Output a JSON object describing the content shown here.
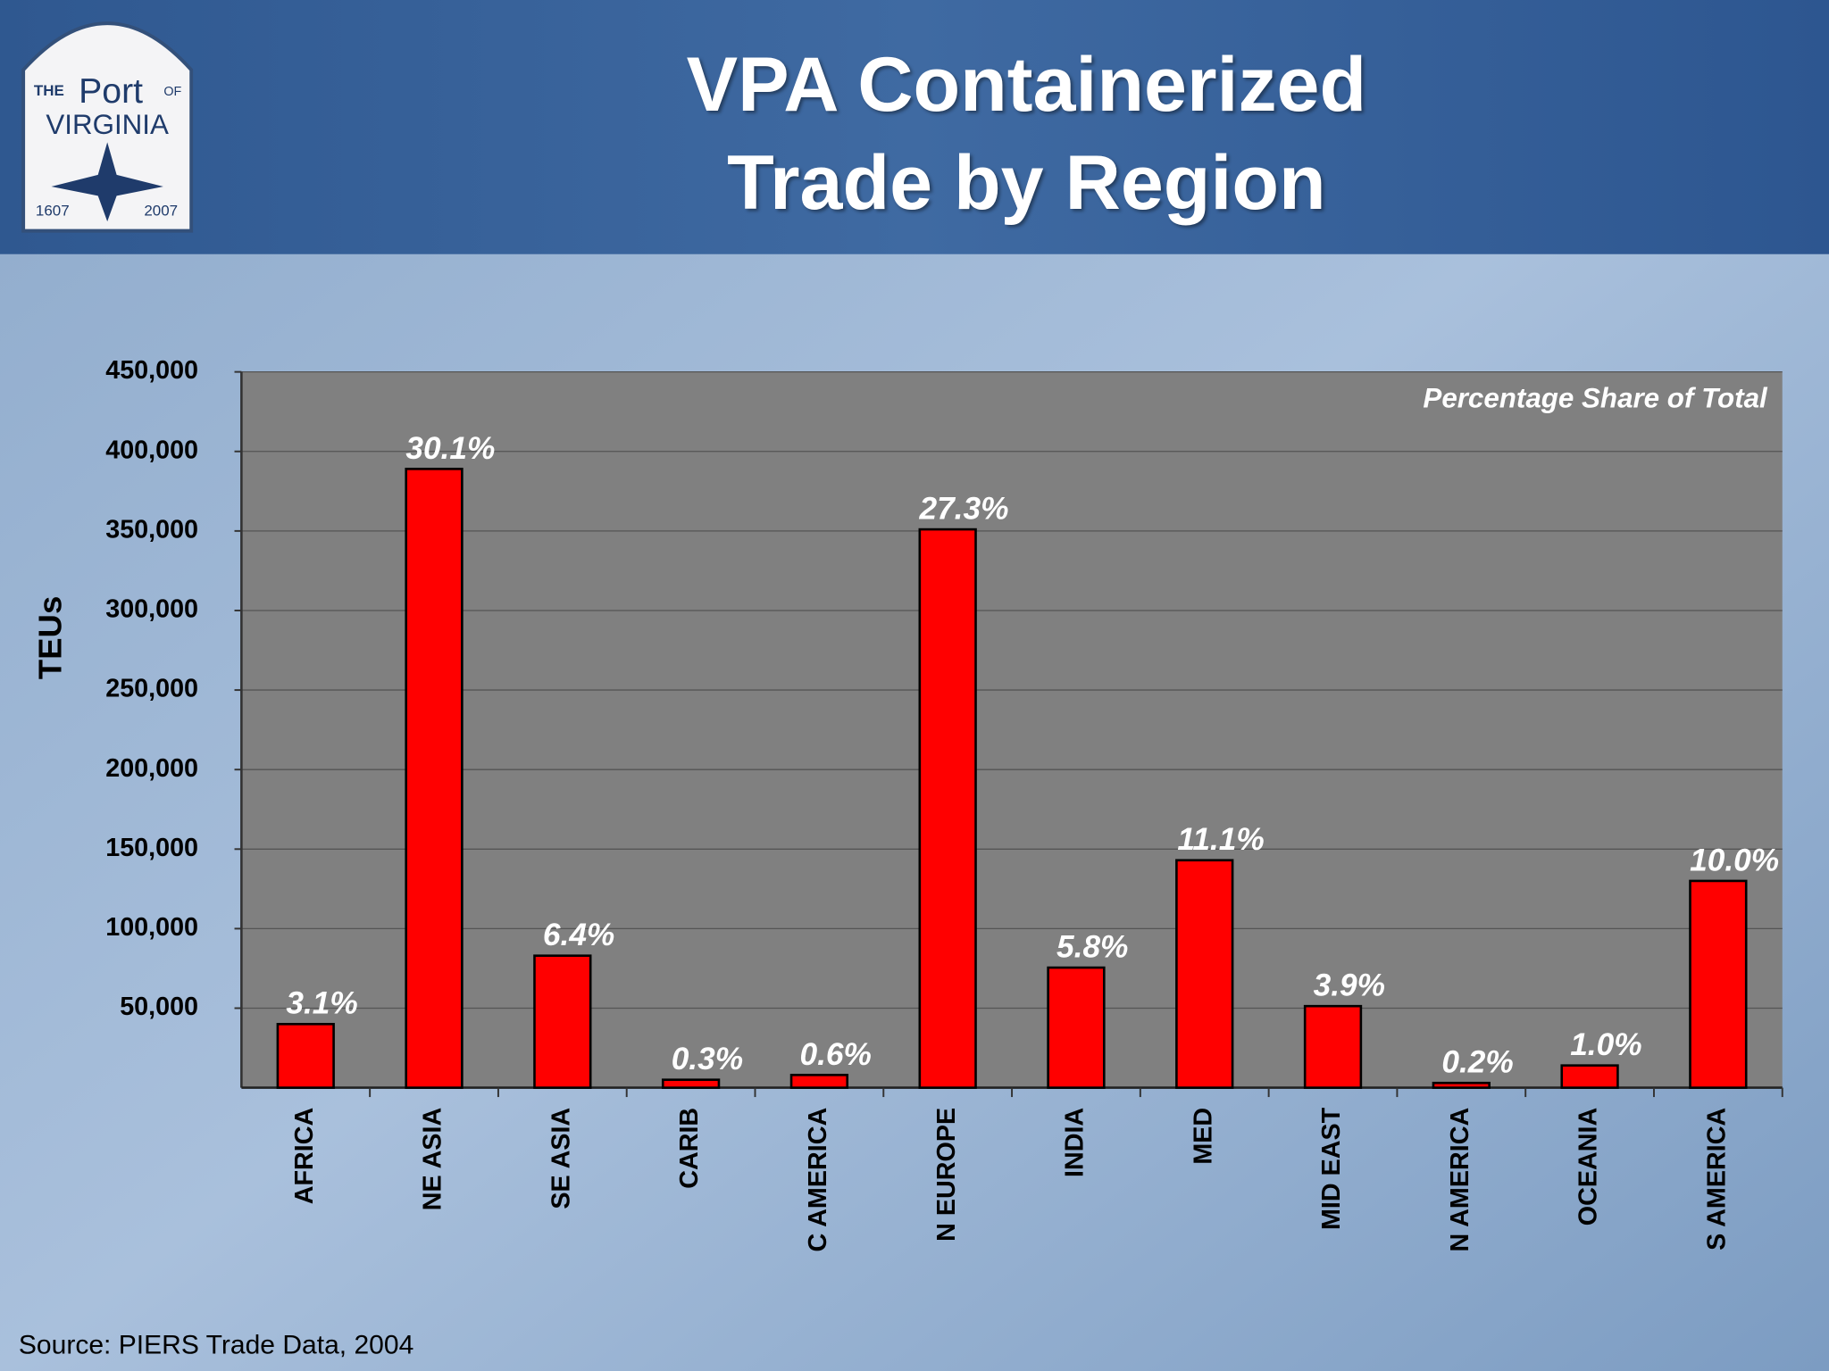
{
  "logo": {
    "texts": [
      "THE",
      "Port",
      "OF",
      "VIRGINIA",
      "1607",
      "2007"
    ]
  },
  "chart_data": {
    "type": "bar",
    "title": "VPA Containerized Trade by Region",
    "y_label": "TEUs",
    "annotation": "Percentage Share of Total",
    "source": "Source:  PIERS Trade Data, 2004",
    "categories": [
      "AFRICA",
      "NE ASIA",
      "SE ASIA",
      "CARIB",
      "C AMERICA",
      "N EUROPE",
      "INDIA",
      "MED",
      "MID EAST",
      "N AMERICA",
      "OCEANIA",
      "S AMERICA"
    ],
    "values": [
      40000,
      389000,
      83000,
      5000,
      8000,
      351000,
      75500,
      143000,
      51300,
      3000,
      14000,
      130000
    ],
    "share_labels": [
      "3.1%",
      "30.1%",
      "6.4%",
      "0.3%",
      "0.6%",
      "27.3%",
      "5.8%",
      "11.1%",
      "3.9%",
      "0.2%",
      "1.0%",
      "10.0%"
    ],
    "color": "#ff0000",
    "ylim": [
      0,
      450000
    ],
    "yticks": [
      {
        "value": 50000,
        "label": "50,000"
      },
      {
        "value": 100000,
        "label": "100,000"
      },
      {
        "value": 150000,
        "label": "150,000"
      },
      {
        "value": 200000,
        "label": "200,000"
      },
      {
        "value": 250000,
        "label": "250,000"
      },
      {
        "value": 300000,
        "label": "300,000"
      },
      {
        "value": 350000,
        "label": "350,000"
      },
      {
        "value": 400000,
        "label": "400,000"
      },
      {
        "value": 450000,
        "label": "450,000"
      }
    ],
    "grid": true
  }
}
